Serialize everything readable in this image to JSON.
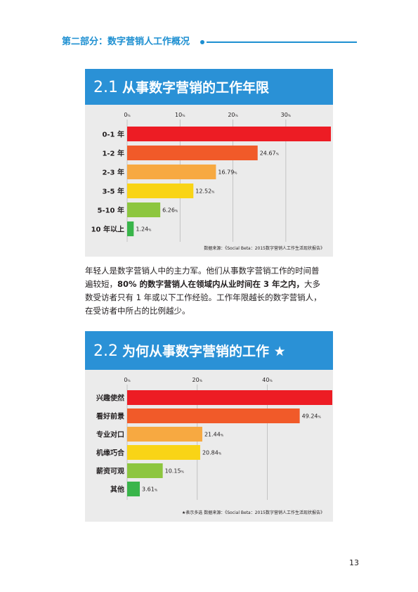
{
  "section_title": "第二部分：数字营销人工作概况",
  "page_number": "13",
  "body": {
    "line1": "年轻人是数字营销人中的主力军。他们从事数字营销工作的时间普",
    "line2a": "遍较短，",
    "line2b": "80% 的数字营销人在领域内从业时间在 3 年之内，",
    "line2c": "大多",
    "line3": "数受访者只有 1 年或以下工作经验。工作年限越长的数字营销人，",
    "line4": "在受访者中所占的比例越少。"
  },
  "panels": [
    {
      "num": "2.1",
      "title": "从事数字营销的工作年限",
      "source": "数据来源：《Social Beta：2015数字营销人工作生活现状报告》"
    },
    {
      "num": "2.2",
      "title": "为何从事数字营销的工作 ★",
      "source": "★表示多选   数据来源：《Social Beta：2015数字营销人工作生活现状报告》"
    }
  ],
  "chart_data": [
    {
      "type": "bar",
      "orientation": "horizontal",
      "title": "从事数字营销的工作年限",
      "categories": [
        "0-1 年",
        "1-2 年",
        "2-3 年",
        "3-5 年",
        "5-10 年",
        "10 年以上"
      ],
      "values": [
        38.52,
        24.67,
        16.79,
        12.52,
        6.26,
        1.24
      ],
      "value_suffix": "%",
      "xticks": [
        0,
        10,
        20,
        30
      ],
      "xlim": [
        0,
        38.52
      ],
      "grid": true,
      "colors": [
        "#ed1c24",
        "#f15a29",
        "#f7a941",
        "#f9d416",
        "#8dc63f",
        "#39b54a"
      ]
    },
    {
      "type": "bar",
      "orientation": "horizontal",
      "title": "为何从事数字营销的工作 ★",
      "categories": [
        "兴趣使然",
        "看好前景",
        "专业对口",
        "机缘巧合",
        "薪资可观",
        "其他"
      ],
      "values": [
        58.54,
        49.24,
        21.44,
        20.84,
        10.15,
        3.61
      ],
      "value_suffix": "%",
      "xticks": [
        0,
        20,
        40
      ],
      "xlim": [
        0,
        58.54
      ],
      "grid": true,
      "colors": [
        "#ed1c24",
        "#f15a29",
        "#f7a941",
        "#f9d416",
        "#8dc63f",
        "#39b54a"
      ]
    }
  ]
}
